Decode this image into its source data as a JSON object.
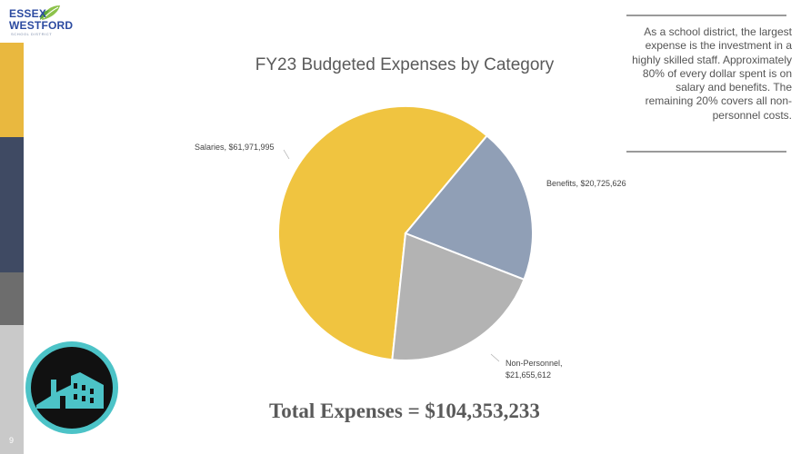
{
  "logo": {
    "line1": "ESSEX",
    "line2": "WESTFORD",
    "subline": "SCHOOL DISTRICT"
  },
  "slide_number": "9",
  "callout": {
    "text": "As a school district, the largest expense is the investment in a highly skilled staff. Approximately 80% of every dollar spent is on salary and benefits. The remaining 20% covers all non-personnel costs."
  },
  "total_line": "Total Expenses = $104,353,233",
  "colors": {
    "stripe_gold": "#e9b83f",
    "stripe_navy": "#3f4a63",
    "stripe_gray": "#6d6d6d",
    "stripe_light": "#c9c9c9",
    "emblem_teal": "#4cc3c7"
  },
  "chart_data": {
    "type": "pie",
    "title": "FY23 Budgeted Expenses by Category",
    "slices": [
      {
        "category": "Salaries",
        "value": 61971995,
        "label": "Salaries, $61,971,995",
        "color": "#f0c440"
      },
      {
        "category": "Benefits",
        "value": 20725626,
        "label": "Benefits, $20,725,626",
        "color": "#909fb6"
      },
      {
        "category": "Non-Personnel",
        "value": 21655612,
        "label_line1": "Non-Personnel,",
        "label_line2": "$21,655,612",
        "color": "#b3b3b3"
      }
    ]
  }
}
